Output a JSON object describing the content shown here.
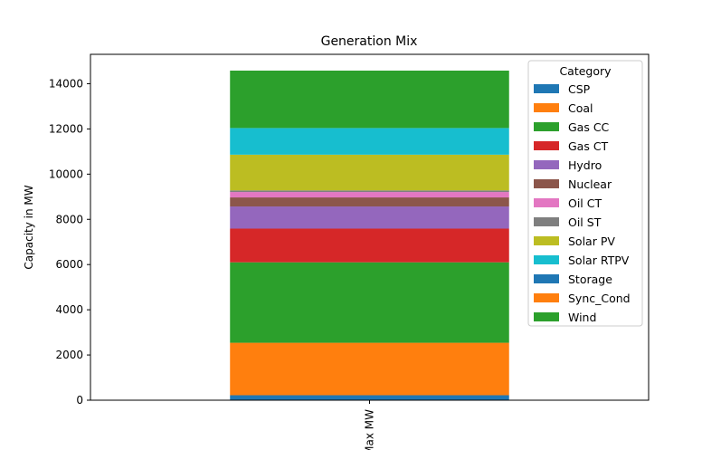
{
  "chart_data": {
    "type": "bar",
    "stacked": true,
    "title": "Generation Mix",
    "xlabel": "",
    "ylabel": "Capacity in MW",
    "categories": [
      "Max MW"
    ],
    "ylim": [
      0,
      15300
    ],
    "yticks": [
      0,
      2000,
      4000,
      6000,
      8000,
      10000,
      12000,
      14000
    ],
    "grid": false,
    "legend": {
      "title": "Category",
      "placement": "top-right"
    },
    "series": [
      {
        "name": "CSP",
        "values": [
          220
        ],
        "color": "#1f77b4"
      },
      {
        "name": "Coal",
        "values": [
          2320
        ],
        "color": "#ff7f0e"
      },
      {
        "name": "Gas CC",
        "values": [
          3560
        ],
        "color": "#2ca02c"
      },
      {
        "name": "Gas CT",
        "values": [
          1490
        ],
        "color": "#d62728"
      },
      {
        "name": "Hydro",
        "values": [
          980
        ],
        "color": "#9467bd"
      },
      {
        "name": "Nuclear",
        "values": [
          400
        ],
        "color": "#8c564b"
      },
      {
        "name": "Oil CT",
        "values": [
          240
        ],
        "color": "#e377c2"
      },
      {
        "name": "Oil ST",
        "values": [
          70
        ],
        "color": "#7f7f7f"
      },
      {
        "name": "Solar PV",
        "values": [
          1580
        ],
        "color": "#bcbd22"
      },
      {
        "name": "Solar RTPV",
        "values": [
          1180
        ],
        "color": "#17becf"
      },
      {
        "name": "Storage",
        "values": [
          0
        ],
        "color": "#1f77b4"
      },
      {
        "name": "Sync_Cond",
        "values": [
          0
        ],
        "color": "#ff7f0e"
      },
      {
        "name": "Wind",
        "values": [
          2540
        ],
        "color": "#2ca02c"
      }
    ]
  }
}
